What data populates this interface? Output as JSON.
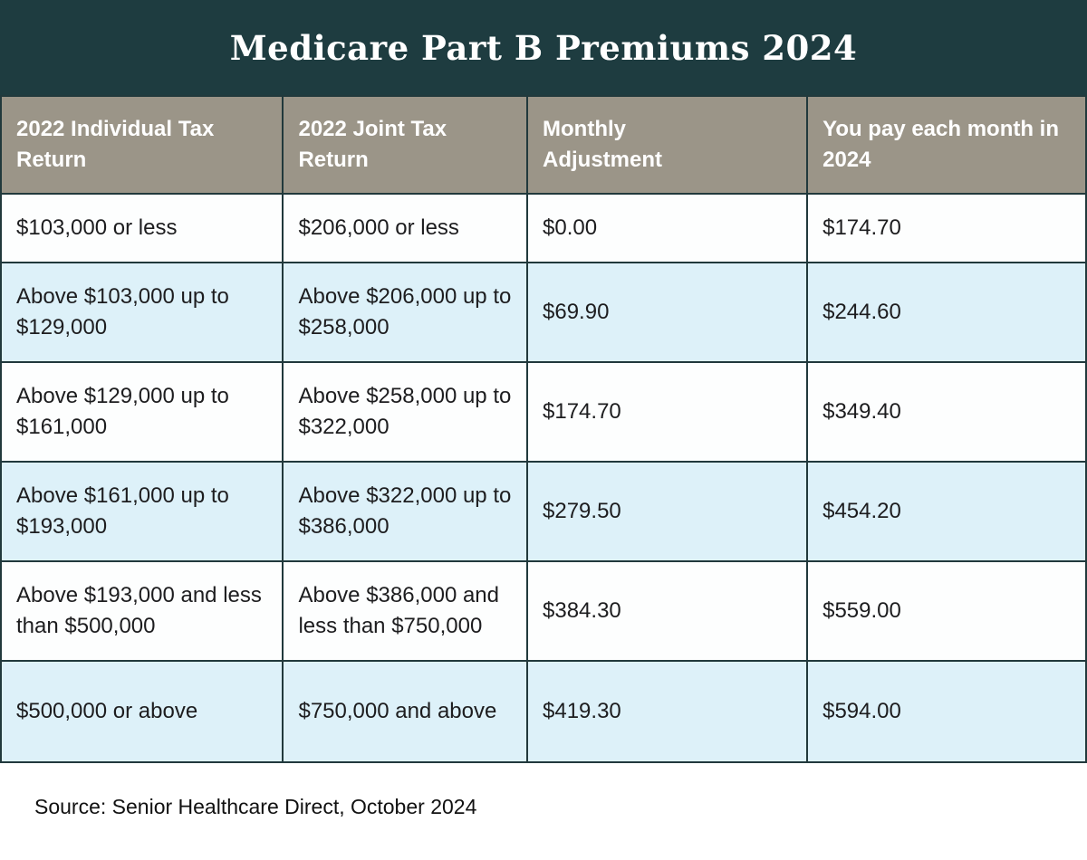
{
  "title": "Medicare Part B Premiums 2024",
  "source": "Source: Senior Healthcare Direct, October 2024",
  "chart_data": {
    "type": "table",
    "title": "Medicare Part B Premiums 2024",
    "columns": [
      "2022 Individual Tax Return",
      "2022 Joint Tax Return",
      "Monthly Adjustment",
      "You pay each month in 2024"
    ],
    "rows": [
      [
        "$103,000 or less",
        "$206,000 or less",
        "$0.00",
        "$174.70"
      ],
      [
        "Above $103,000 up to $129,000",
        "Above $206,000 up to $258,000",
        "$69.90",
        "$244.60"
      ],
      [
        "Above $129,000 up to $161,000",
        "Above $258,000 up to $322,000",
        "$174.70",
        "$349.40"
      ],
      [
        "Above $161,000 up to $193,000",
        "Above $322,000 up to $386,000",
        "$279.50",
        "$454.20"
      ],
      [
        "Above $193,000 and less than $500,000",
        "Above $386,000 and less than $750,000",
        "$384.30",
        "$559.00"
      ],
      [
        "$500,000 or above",
        "$750,000 and above",
        "$419.30",
        "$594.00"
      ]
    ]
  },
  "colors": {
    "header_bar": "#1e3c40",
    "column_header_bg": "#9b9588",
    "row_alt_bg": "#ddf1f9",
    "row_bg": "#fdfefe",
    "border": "#21393c",
    "text": "#1d1d1f",
    "header_text": "#ffffff"
  }
}
